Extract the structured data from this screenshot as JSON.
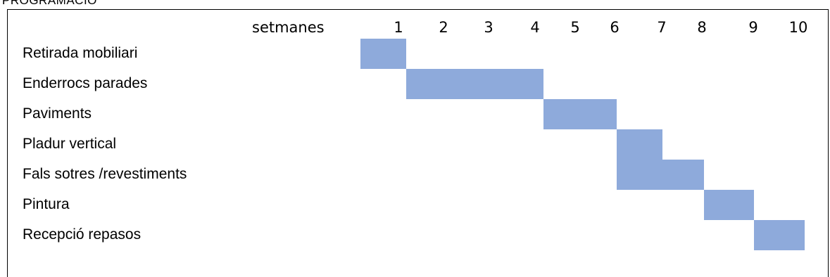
{
  "title": "PROGRAMACIÓ",
  "colors": {
    "bar": "#8eaadb",
    "border": "#000000"
  },
  "chart_data": {
    "type": "bar",
    "subtype": "gantt",
    "x_header": "setmanes",
    "weeks": [
      "1",
      "2",
      "3",
      "4",
      "5",
      "6",
      "7",
      "8",
      "9",
      "10"
    ],
    "tasks": [
      {
        "name": "Retirada mobiliari",
        "start": 1.0,
        "end": 2.0
      },
      {
        "name": "Enderrocs parades",
        "start": 2.0,
        "end": 5.0
      },
      {
        "name": "Paviments",
        "start": 5.0,
        "end": 6.6
      },
      {
        "name": "Pladur  vertical",
        "start": 6.6,
        "end": 7.6
      },
      {
        "name": "Fals sotres /revestiments",
        "start": 6.6,
        "end": 8.5
      },
      {
        "name": "Pintura",
        "start": 8.5,
        "end": 9.6
      },
      {
        "name": "Recepció repasos",
        "start": 9.6,
        "end": 10.7
      }
    ],
    "grid": false
  }
}
